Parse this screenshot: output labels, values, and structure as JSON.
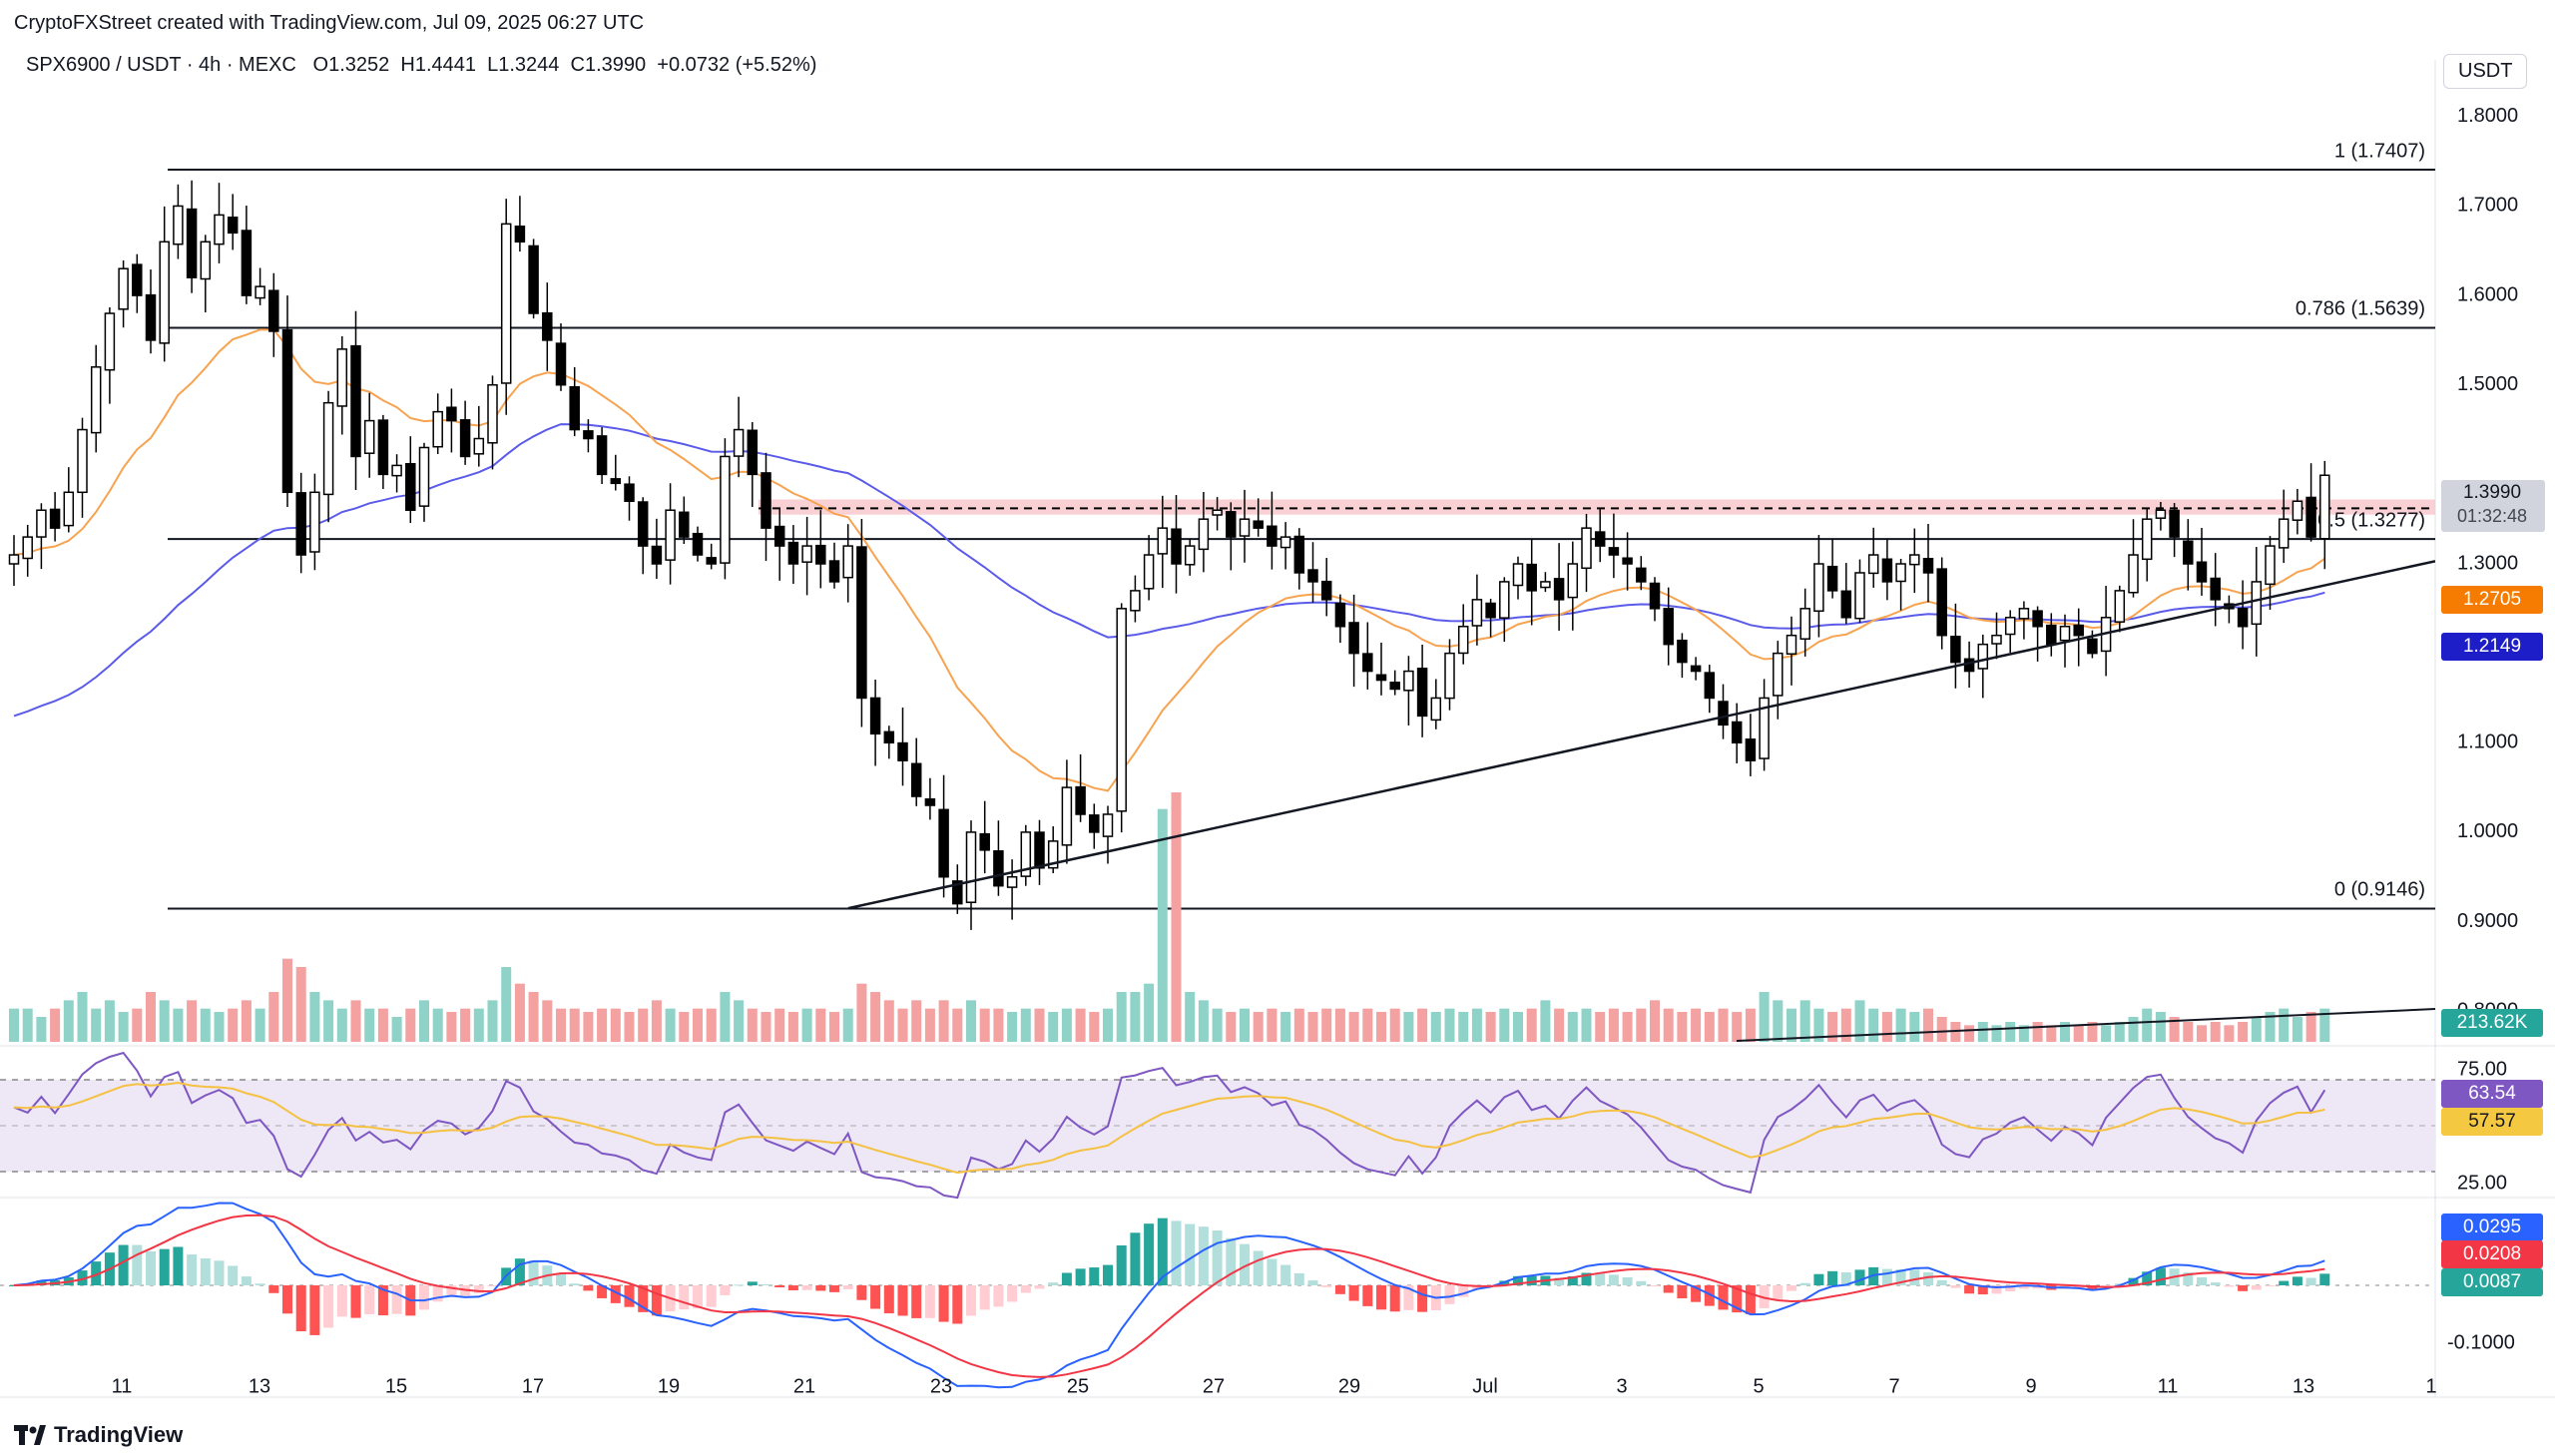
{
  "header": {
    "credit": "CryptoFXStreet created with TradingView.com, Jul 09, 2025 06:27 UTC",
    "symbol_line": "SPX6900 / USDT · 4h · MEXC",
    "open": "O1.3252",
    "high": "H1.4441",
    "low": "L1.3244",
    "close": "C1.3990",
    "change": "+0.0732 (+5.52%)",
    "currency": "USDT"
  },
  "footer": {
    "brand": "TradingView"
  },
  "colors": {
    "up": "#ffffff",
    "down": "#000000",
    "wick": "#000000",
    "ema50": "#f7a350",
    "ema200": "#5b5bea",
    "vol_up": "#8fd3c8",
    "vol_down": "#f3a1a1",
    "rsi": "#7e57c2",
    "rsi_ma": "#f5c142",
    "rsi_band": "#ede7f6",
    "macd": "#2962ff",
    "signal": "#f23645",
    "hist_up_strong": "#26a69a",
    "hist_up_weak": "#b2dfdb",
    "hist_down_strong": "#ff5252",
    "hist_down_weak": "#ffcdd2",
    "resistance_zone": "#f7c6cb"
  },
  "chart_data": {
    "type": "candlestick",
    "timeframe": "4h",
    "x_ticks": [
      "11",
      "13",
      "15",
      "17",
      "19",
      "21",
      "23",
      "25",
      "27",
      "29",
      "Jul",
      "3",
      "5",
      "7",
      "9",
      "11",
      "13",
      "1"
    ],
    "price_axis": {
      "range": [
        0.75,
        1.85
      ],
      "ticks": [
        "1.8000",
        "1.7000",
        "1.6000",
        "1.5000",
        "1.3000",
        "1.1000",
        "1.0000",
        "0.9000",
        "0.8000"
      ]
    },
    "price_ticks_values": [
      1.8,
      1.7,
      1.6,
      1.5,
      1.3,
      1.1,
      1.0,
      0.9,
      0.8
    ],
    "fibonacci": [
      {
        "label": "1 (1.7407)",
        "value": 1.7407
      },
      {
        "label": "0.786 (1.5639)",
        "value": 1.5639
      },
      {
        "label": "0.5 (1.3277)",
        "value": 1.3277
      },
      {
        "label": "0 (0.9146)",
        "value": 0.9146
      }
    ],
    "resistance_zone": {
      "low": 1.355,
      "high": 1.372,
      "mid": 1.362
    },
    "trendline": {
      "from": {
        "date": "Jun 21",
        "value": 0.915
      },
      "to": {
        "date": "Jul 12",
        "value": 1.303
      }
    },
    "price_labels": {
      "last_price": "1.3990",
      "countdown": "01:32:48",
      "ema50": "1.2705",
      "ema200": "1.2149",
      "volume": "213.62K"
    },
    "rsi": {
      "ticks": [
        "75.00",
        "25.00"
      ],
      "value": "63.54",
      "ma": "57.57"
    },
    "macd": {
      "ticks": [
        "-0.1000"
      ],
      "macd": "0.0295",
      "signal": "0.0208",
      "histogram": "0.0087"
    },
    "closes": [
      1.31,
      1.33,
      1.36,
      1.34,
      1.38,
      1.45,
      1.52,
      1.58,
      1.63,
      1.6,
      1.55,
      1.66,
      1.7,
      1.62,
      1.66,
      1.69,
      1.67,
      1.6,
      1.61,
      1.56,
      1.38,
      1.31,
      1.38,
      1.48,
      1.54,
      1.42,
      1.46,
      1.4,
      1.41,
      1.36,
      1.43,
      1.47,
      1.46,
      1.42,
      1.44,
      1.5,
      1.68,
      1.66,
      1.58,
      1.55,
      1.5,
      1.45,
      1.44,
      1.4,
      1.39,
      1.37,
      1.32,
      1.3,
      1.36,
      1.33,
      1.31,
      1.3,
      1.42,
      1.45,
      1.4,
      1.34,
      1.32,
      1.3,
      1.32,
      1.3,
      1.28,
      1.32,
      1.15,
      1.11,
      1.1,
      1.08,
      1.04,
      1.03,
      0.95,
      0.92,
      1.0,
      0.98,
      0.94,
      0.95,
      1.0,
      0.96,
      0.99,
      1.05,
      1.02,
      1.0,
      1.02,
      1.25,
      1.27,
      1.31,
      1.34,
      1.3,
      1.32,
      1.35,
      1.36,
      1.33,
      1.35,
      1.34,
      1.32,
      1.33,
      1.29,
      1.28,
      1.26,
      1.23,
      1.2,
      1.18,
      1.17,
      1.16,
      1.18,
      1.13,
      1.15,
      1.2,
      1.23,
      1.26,
      1.24,
      1.28,
      1.3,
      1.27,
      1.28,
      1.26,
      1.3,
      1.34,
      1.32,
      1.31,
      1.3,
      1.28,
      1.25,
      1.21,
      1.19,
      1.18,
      1.15,
      1.12,
      1.1,
      1.08,
      1.15,
      1.2,
      1.22,
      1.25,
      1.3,
      1.27,
      1.24,
      1.29,
      1.31,
      1.28,
      1.3,
      1.31,
      1.29,
      1.22,
      1.19,
      1.18,
      1.21,
      1.22,
      1.24,
      1.25,
      1.23,
      1.21,
      1.23,
      1.22,
      1.2,
      1.24,
      1.27,
      1.31,
      1.35,
      1.36,
      1.33,
      1.3,
      1.28,
      1.26,
      1.25,
      1.23,
      1.28,
      1.32,
      1.35,
      1.37,
      1.33,
      1.399
    ],
    "volume": {
      "range": [
        0,
        0.15
      ],
      "values": [
        0.02,
        0.02,
        0.015,
        0.02,
        0.025,
        0.03,
        0.02,
        0.025,
        0.018,
        0.02,
        0.03,
        0.025,
        0.02,
        0.025,
        0.02,
        0.018,
        0.02,
        0.025,
        0.02,
        0.03,
        0.05,
        0.045,
        0.03,
        0.025,
        0.02,
        0.025,
        0.02,
        0.02,
        0.015,
        0.02,
        0.025,
        0.02,
        0.018,
        0.02,
        0.02,
        0.025,
        0.045,
        0.035,
        0.03,
        0.025,
        0.02,
        0.02,
        0.018,
        0.02,
        0.02,
        0.018,
        0.02,
        0.025,
        0.02,
        0.018,
        0.02,
        0.02,
        0.03,
        0.025,
        0.02,
        0.018,
        0.02,
        0.018,
        0.02,
        0.02,
        0.018,
        0.02,
        0.035,
        0.03,
        0.025,
        0.02,
        0.025,
        0.02,
        0.025,
        0.02,
        0.025,
        0.02,
        0.02,
        0.018,
        0.02,
        0.02,
        0.018,
        0.02,
        0.02,
        0.018,
        0.02,
        0.03,
        0.03,
        0.035,
        0.14,
        0.15,
        0.03,
        0.025,
        0.02,
        0.018,
        0.02,
        0.018,
        0.02,
        0.018,
        0.02,
        0.018,
        0.02,
        0.02,
        0.018,
        0.02,
        0.018,
        0.02,
        0.018,
        0.02,
        0.018,
        0.02,
        0.018,
        0.02,
        0.018,
        0.02,
        0.018,
        0.02,
        0.025,
        0.02,
        0.018,
        0.02,
        0.018,
        0.02,
        0.018,
        0.02,
        0.025,
        0.02,
        0.018,
        0.02,
        0.018,
        0.02,
        0.018,
        0.02,
        0.03,
        0.025,
        0.02,
        0.025,
        0.02,
        0.018,
        0.02,
        0.025,
        0.02,
        0.018,
        0.02,
        0.018,
        0.02,
        0.015,
        0.012,
        0.01,
        0.012,
        0.01,
        0.012,
        0.01,
        0.012,
        0.01,
        0.012,
        0.01,
        0.012,
        0.01,
        0.012,
        0.015,
        0.02,
        0.018,
        0.015,
        0.012,
        0.01,
        0.012,
        0.01,
        0.012,
        0.015,
        0.018,
        0.02,
        0.015,
        0.018,
        0.02
      ]
    }
  }
}
